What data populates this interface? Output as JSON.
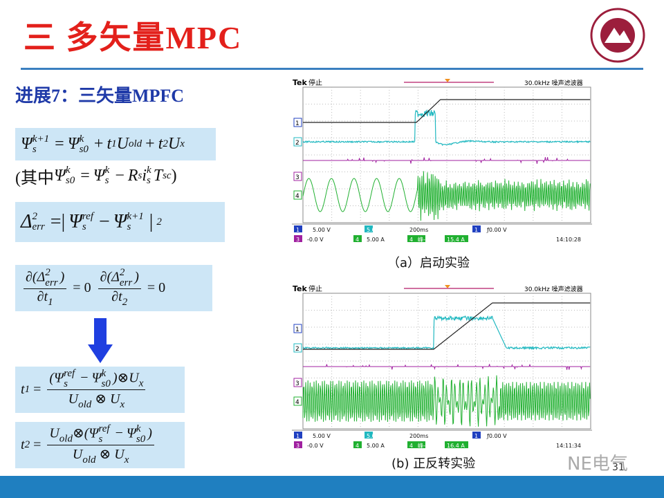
{
  "header": {
    "title": "三 多矢量MPC"
  },
  "subtitle": "进展7：三矢量MPFC",
  "formulas": [
    [
      "Ψ",
      "k+1",
      "s",
      "=",
      "Ψ",
      "k",
      "s0",
      "+",
      "t",
      "1",
      "U",
      "old",
      "+",
      "t",
      "2",
      "U",
      "x"
    ],
    [
      "(其中",
      "Ψ",
      "k",
      "s0",
      "=",
      "Ψ",
      "k",
      "s",
      "−",
      "R",
      "s",
      "i",
      "k",
      "s",
      "T",
      "sc",
      ")"
    ],
    [
      "Δ",
      "2",
      "err",
      "=|",
      "Ψ",
      "ref",
      "s",
      "−",
      "Ψ",
      "k+1",
      "s",
      "|",
      "2"
    ],
    [
      "∂(Δ",
      "2",
      "err",
      ")",
      "∂t",
      "1",
      "=",
      "0",
      "∂(Δ",
      "2",
      "err",
      ")",
      "∂t",
      "2",
      "=",
      "0"
    ],
    [
      "t",
      "1",
      "=",
      "(Ψ",
      "ref",
      "s",
      "−",
      "Ψ",
      "k",
      "s0",
      ")⊗",
      "U",
      "x",
      "U",
      "old",
      "⊗",
      "U",
      "x"
    ],
    [
      "t",
      "2",
      "=",
      "U",
      "old",
      "⊗(Ψ",
      "ref",
      "s",
      "−",
      "Ψ",
      "k",
      "s0",
      ")",
      "U",
      "old",
      "⊗",
      "U",
      "x"
    ]
  ],
  "scopes": [
    {
      "brand": "Tek",
      "status": "停止",
      "filter": "30.0kHz 噪声滤波器",
      "channels": [
        "1",
        "2",
        "3",
        "4"
      ],
      "row1": [
        "1",
        "5.00 V",
        "5.00 V",
        "200ms",
        "1",
        "ƒ0.00 V"
      ],
      "row2": [
        "3",
        "-0.0 V",
        "4",
        "5.00 A",
        "4",
        "峰-峰",
        "15.4 A",
        "14:10:28"
      ],
      "caption": "（a）启动实验"
    },
    {
      "brand": "Tek",
      "status": "停止",
      "filter": "30.0kHz 噪声滤波器",
      "channels": [
        "1",
        "2",
        "3",
        "4"
      ],
      "row1": [
        "1",
        "5.00 V",
        "5.00 V",
        "200ms",
        "1",
        "ƒ0.00 V"
      ],
      "row2": [
        "3",
        "-0.0 V",
        "4",
        "5.00 A",
        "4",
        "峰-峰",
        "16.4 A",
        "14:11:34"
      ],
      "caption": "(b) 正反转实验"
    }
  ],
  "page_number": "31",
  "watermark": "NE电气"
}
